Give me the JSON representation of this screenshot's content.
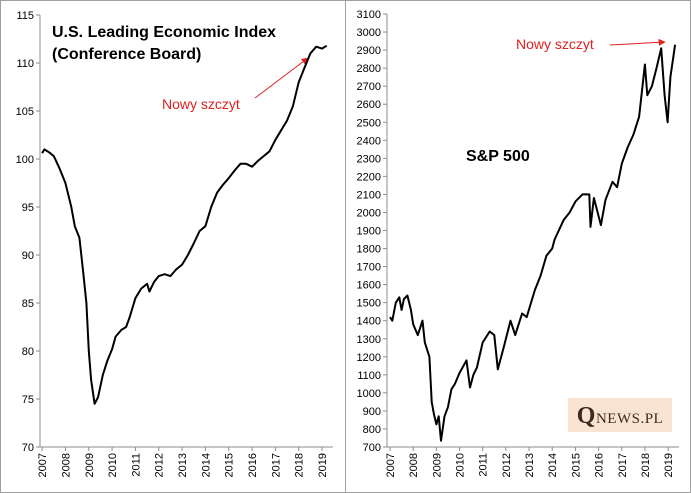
{
  "chart_data": [
    {
      "type": "line",
      "title": "U.S. Leading Economic Index",
      "subtitle": "(Conference Board)",
      "annotation": "Nowy szczyt",
      "xlim": [
        2006.91,
        2019.47
      ],
      "xticks": [
        2007,
        2008,
        2009,
        2010,
        2011,
        2012,
        2013,
        2014,
        2015,
        2016,
        2017,
        2018,
        2019
      ],
      "ylim": [
        70,
        115
      ],
      "yticks": [
        70,
        75,
        80,
        85,
        90,
        95,
        100,
        105,
        110,
        115
      ],
      "series": [
        {
          "color": "#000000",
          "x": [
            2007.0,
            2007.1,
            2007.3,
            2007.5,
            2007.75,
            2008.0,
            2008.25,
            2008.4,
            2008.6,
            2008.75,
            2008.9,
            2009.0,
            2009.1,
            2009.25,
            2009.4,
            2009.6,
            2009.8,
            2010.0,
            2010.15,
            2010.4,
            2010.6,
            2010.75,
            2011.0,
            2011.25,
            2011.5,
            2011.6,
            2011.8,
            2012.0,
            2012.25,
            2012.5,
            2012.75,
            2013.0,
            2013.25,
            2013.5,
            2013.75,
            2014.0,
            2014.25,
            2014.5,
            2014.75,
            2015.0,
            2015.25,
            2015.5,
            2015.75,
            2016.0,
            2016.25,
            2016.5,
            2016.75,
            2017.0,
            2017.25,
            2017.5,
            2017.75,
            2018.0,
            2018.25,
            2018.5,
            2018.75,
            2019.0,
            2019.2
          ],
          "values": [
            100.6,
            101.0,
            100.7,
            100.3,
            99.0,
            97.5,
            95.0,
            93.0,
            91.8,
            88.5,
            85.0,
            80.0,
            77.0,
            74.5,
            75.2,
            77.5,
            79.0,
            80.2,
            81.5,
            82.2,
            82.5,
            83.5,
            85.5,
            86.5,
            87.0,
            86.2,
            87.2,
            87.8,
            88.0,
            87.8,
            88.5,
            89.0,
            90.0,
            91.2,
            92.5,
            93.0,
            95.0,
            96.5,
            97.3,
            98.0,
            98.8,
            99.5,
            99.5,
            99.2,
            99.8,
            100.3,
            100.8,
            102.0,
            103.0,
            104.0,
            105.5,
            108.0,
            109.5,
            111.0,
            111.7,
            111.5,
            111.8
          ]
        }
      ]
    },
    {
      "type": "line",
      "title": "S&P 500",
      "annotation": "Nowy szczyt",
      "xlim": [
        2006.87,
        2019.47
      ],
      "xticks": [
        2007,
        2008,
        2009,
        2010,
        2011,
        2012,
        2013,
        2014,
        2015,
        2016,
        2017,
        2018,
        2019
      ],
      "ylim": [
        700,
        3100
      ],
      "yticks": [
        700,
        800,
        900,
        1000,
        1100,
        1200,
        1300,
        1400,
        1500,
        1600,
        1700,
        1800,
        1900,
        2000,
        2100,
        2200,
        2300,
        2400,
        2500,
        2600,
        2700,
        2800,
        2900,
        3000,
        3100
      ],
      "series": [
        {
          "color": "#000000",
          "x": [
            2007.0,
            2007.1,
            2007.25,
            2007.4,
            2007.5,
            2007.6,
            2007.75,
            2007.9,
            2008.0,
            2008.2,
            2008.4,
            2008.5,
            2008.7,
            2008.8,
            2008.9,
            2009.0,
            2009.1,
            2009.2,
            2009.35,
            2009.5,
            2009.65,
            2009.8,
            2010.0,
            2010.3,
            2010.45,
            2010.6,
            2010.75,
            2011.0,
            2011.3,
            2011.5,
            2011.65,
            2011.9,
            2012.2,
            2012.4,
            2012.7,
            2012.9,
            2013.25,
            2013.5,
            2013.75,
            2014.0,
            2014.1,
            2014.5,
            2014.75,
            2015.0,
            2015.3,
            2015.6,
            2015.65,
            2015.8,
            2016.1,
            2016.3,
            2016.6,
            2016.8,
            2017.0,
            2017.25,
            2017.5,
            2017.75,
            2018.0,
            2018.1,
            2018.3,
            2018.5,
            2018.7,
            2018.85,
            2018.98,
            2019.1,
            2019.3
          ],
          "values": [
            1420,
            1400,
            1500,
            1530,
            1460,
            1520,
            1540,
            1460,
            1380,
            1320,
            1400,
            1280,
            1200,
            950,
            880,
            825,
            870,
            735,
            870,
            920,
            1020,
            1050,
            1110,
            1180,
            1030,
            1100,
            1140,
            1280,
            1340,
            1320,
            1130,
            1250,
            1400,
            1320,
            1440,
            1420,
            1570,
            1650,
            1760,
            1800,
            1850,
            1960,
            2000,
            2060,
            2100,
            2100,
            1920,
            2080,
            1930,
            2070,
            2170,
            2140,
            2270,
            2360,
            2430,
            2530,
            2820,
            2650,
            2700,
            2800,
            2910,
            2650,
            2500,
            2750,
            2930
          ]
        }
      ]
    }
  ],
  "watermark": "QNEWS.PL"
}
